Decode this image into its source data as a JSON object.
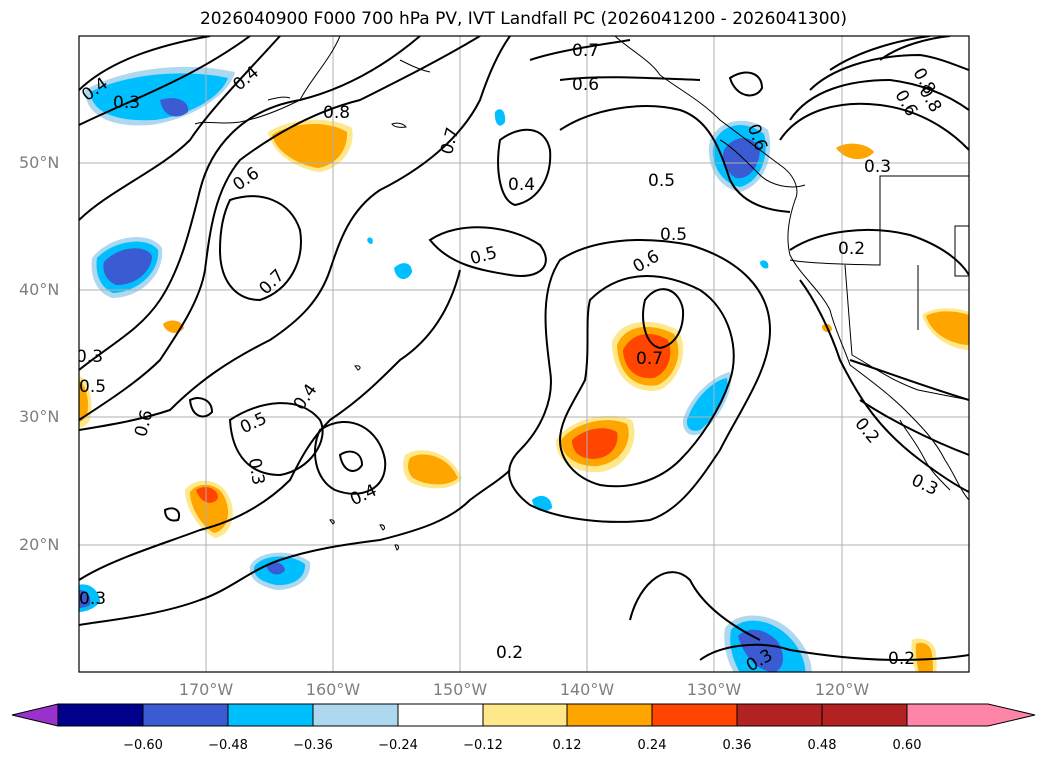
{
  "title": "2026040900 F000 700 hPa PV, IVT Landfall PC (2026041200 - 2026041300)",
  "map": {
    "projection": "PlateCarree",
    "lon_range": [
      -180,
      -110
    ],
    "lat_range": [
      10,
      60
    ],
    "gridlines": true,
    "lat_ticks": [
      {
        "value": 20,
        "label": "20°N"
      },
      {
        "value": 30,
        "label": "30°N"
      },
      {
        "value": 40,
        "label": "40°N"
      },
      {
        "value": 50,
        "label": "50°N"
      }
    ],
    "lon_ticks": [
      {
        "value": -170,
        "label": "170°W"
      },
      {
        "value": -160,
        "label": "160°W"
      },
      {
        "value": -150,
        "label": "150°W"
      },
      {
        "value": -140,
        "label": "140°W"
      },
      {
        "value": -130,
        "label": "130°W"
      },
      {
        "value": -120,
        "label": "120°W"
      }
    ],
    "contour_labels": [
      "0.2",
      "0.3",
      "0.4",
      "0.5",
      "0.6",
      "0.7",
      "0.8"
    ]
  },
  "colorbar": {
    "ticks": [
      "−0.60",
      "−0.48",
      "−0.36",
      "−0.24",
      "−0.12",
      "0.12",
      "0.24",
      "0.36",
      "0.48",
      "0.60"
    ],
    "colors": [
      "#9932cc",
      "#00008b",
      "#3a5bd1",
      "#00bfff",
      "#add8f0",
      "#ffffff",
      "#ffe88a",
      "#ffa500",
      "#ff4500",
      "#b22222",
      "#ff85a8"
    ],
    "extend": "both"
  }
}
